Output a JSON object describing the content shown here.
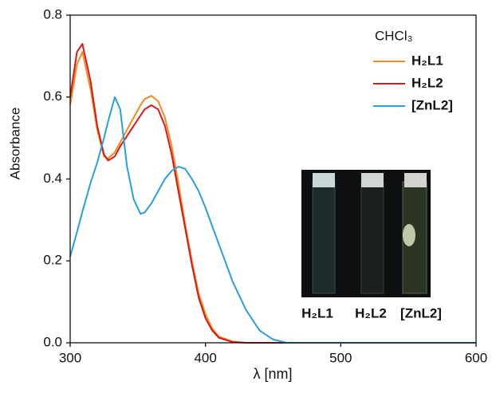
{
  "chart_data": {
    "type": "line",
    "xlabel": "λ [nm]",
    "ylabel": "Absorbance",
    "legend_title": "CHCl₃",
    "legend": "upper right",
    "x": [
      300,
      305,
      309,
      315,
      320,
      325,
      328,
      333,
      337,
      342,
      347,
      352,
      355,
      360,
      365,
      370,
      375,
      380,
      385,
      390,
      395,
      400,
      405,
      410,
      420,
      430,
      440,
      450,
      460,
      600
    ],
    "series": [
      {
        "name": "H₂L1",
        "color": "#f28a1e",
        "values": [
          0.58,
          0.68,
          0.71,
          0.62,
          0.52,
          0.455,
          0.45,
          0.465,
          0.49,
          0.52,
          0.55,
          0.58,
          0.595,
          0.603,
          0.59,
          0.55,
          0.48,
          0.39,
          0.29,
          0.2,
          0.12,
          0.07,
          0.035,
          0.015,
          0.003,
          0,
          0,
          0,
          0,
          0
        ]
      },
      {
        "name": "H₂L2",
        "color": "#d7191c",
        "values": [
          0.6,
          0.71,
          0.73,
          0.64,
          0.53,
          0.46,
          0.445,
          0.455,
          0.48,
          0.505,
          0.53,
          0.555,
          0.57,
          0.58,
          0.57,
          0.53,
          0.46,
          0.37,
          0.28,
          0.19,
          0.11,
          0.06,
          0.03,
          0.012,
          0.002,
          0,
          0,
          0,
          0,
          0
        ]
      },
      {
        "name": "[ZnL2]",
        "color": "#2a9fe0",
        "values": [
          0.21,
          0.27,
          0.32,
          0.39,
          0.44,
          0.5,
          0.54,
          0.6,
          0.57,
          0.43,
          0.35,
          0.315,
          0.318,
          0.34,
          0.37,
          0.4,
          0.42,
          0.43,
          0.425,
          0.4,
          0.37,
          0.33,
          0.285,
          0.24,
          0.15,
          0.08,
          0.03,
          0.008,
          0,
          0
        ]
      }
    ],
    "xlim": [
      300,
      600
    ],
    "xticks": [
      300,
      400,
      500,
      600
    ],
    "ylim": [
      0,
      0.8
    ],
    "yticks": [
      {
        "value": 0,
        "label": "0.0"
      },
      0.2,
      0.4,
      0.6,
      0.8
    ],
    "inset_labels": [
      "H₂L1",
      "H₂L2",
      "[ZnL2]"
    ]
  }
}
